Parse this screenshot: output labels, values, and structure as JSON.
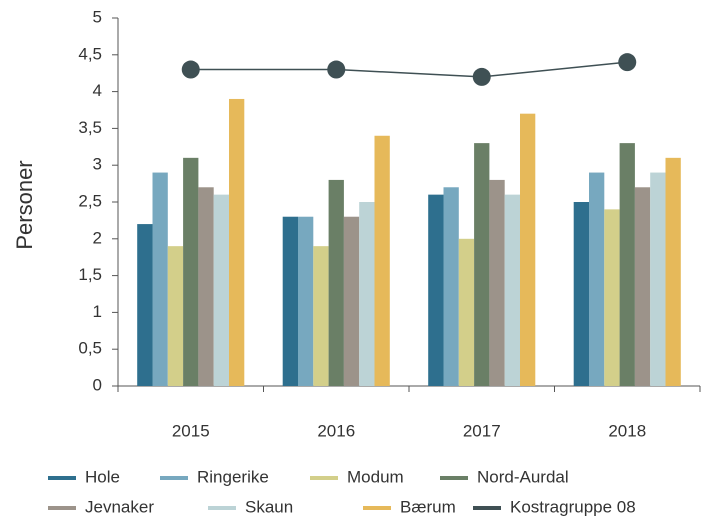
{
  "chart_data": {
    "type": "bar",
    "y_label": "Personer",
    "categories": [
      "2015",
      "2016",
      "2017",
      "2018"
    ],
    "series": [
      {
        "name": "Hole",
        "color": "#2e6f8e",
        "values": [
          2.2,
          2.3,
          2.6,
          2.5
        ]
      },
      {
        "name": "Ringerike",
        "color": "#77a8bf",
        "values": [
          2.9,
          2.3,
          2.7,
          2.9
        ]
      },
      {
        "name": "Modum",
        "color": "#d3cf8a",
        "values": [
          1.9,
          1.9,
          2.0,
          2.4
        ]
      },
      {
        "name": "Nord-Aurdal",
        "color": "#6a7f66",
        "values": [
          3.1,
          2.8,
          3.3,
          3.3
        ]
      },
      {
        "name": "Jevnaker",
        "color": "#9c938a",
        "values": [
          2.7,
          2.3,
          2.8,
          2.7
        ]
      },
      {
        "name": "Skaun",
        "color": "#bcd3d6",
        "values": [
          2.6,
          2.5,
          2.6,
          2.9
        ]
      },
      {
        "name": "Bærum",
        "color": "#e6b95a",
        "values": [
          3.9,
          3.4,
          3.7,
          3.1
        ]
      },
      {
        "name": "Kostragruppe 08",
        "color": "#3f5054",
        "type": "line",
        "values": [
          4.3,
          4.3,
          4.2,
          4.4
        ]
      }
    ],
    "ylim": [
      0,
      5
    ],
    "yticks": [
      0,
      {
        "value": 0.5,
        "label": "0,5"
      },
      1,
      {
        "value": 1.5,
        "label": "1,5"
      },
      2,
      {
        "value": 2.5,
        "label": "2,5"
      },
      3,
      {
        "value": 3.5,
        "label": "3,5"
      },
      4,
      {
        "value": 4.5,
        "label": "4,5"
      },
      5
    ],
    "grid": false,
    "legend": "bottom"
  }
}
